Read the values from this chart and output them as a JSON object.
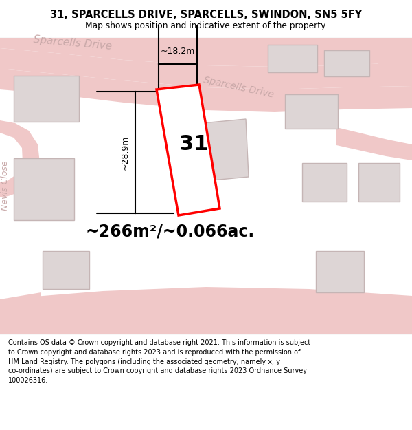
{
  "title_line1": "31, SPARCELLS DRIVE, SPARCELLS, SWINDON, SN5 5FY",
  "title_line2": "Map shows position and indicative extent of the property.",
  "area_text": "~266m²/~0.066ac.",
  "number_label": "31",
  "width_label": "~18.2m",
  "height_label": "~28.9m",
  "footer_text": "Contains OS data © Crown copyright and database right 2021. This information is subject\nto Crown copyright and database rights 2023 and is reproduced with the permission of\nHM Land Registry. The polygons (including the associated geometry, namely x, y\nco-ordinates) are subject to Crown copyright and database rights 2023 Ordnance Survey\n100026316.",
  "map_bg": "#f7f2f2",
  "road_color": "#f0c8c8",
  "building_fill": "#ddd5d5",
  "building_edge": "#c5b5b5",
  "plot_color": "#ff0000",
  "header_bg": "#ffffff",
  "footer_bg": "#ffffff",
  "street_label_color": "#c8a8a8",
  "sep_color": "#dddddd"
}
